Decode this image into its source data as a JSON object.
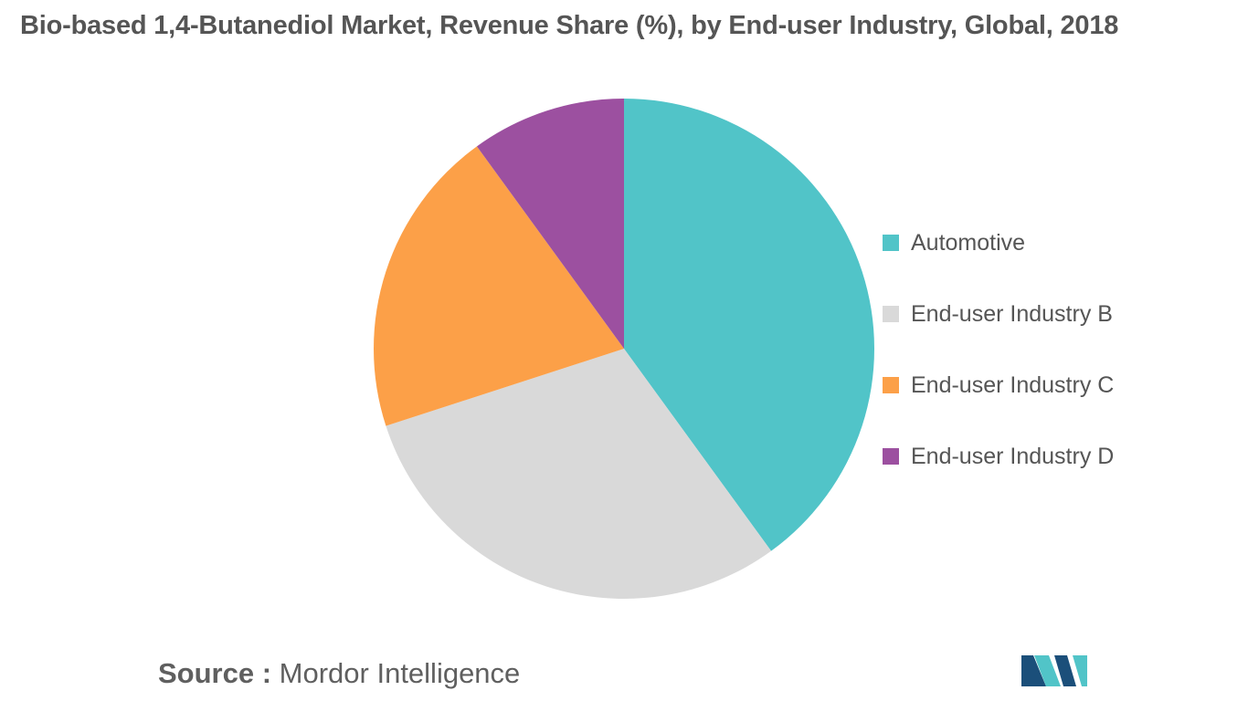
{
  "title": "Bio-based 1,4-Butanediol Market, Revenue Share (%), by End-user Industry, Global, 2018",
  "chart_data": {
    "type": "pie",
    "title": "Bio-based 1,4-Butanediol Market, Revenue Share (%), by End-user Industry, Global, 2018",
    "start_angle": "12 o'clock",
    "direction": "clockwise",
    "slices": [
      {
        "label": "Automotive",
        "value": 40,
        "color": "#51c4c8"
      },
      {
        "label": "End-user Industry B",
        "value": 30,
        "color": "#d9d9d9"
      },
      {
        "label": "End-user Industry C",
        "value": 20,
        "color": "#fca048"
      },
      {
        "label": "End-user Industry D",
        "value": 10,
        "color": "#9c50a0"
      }
    ],
    "legend": "right"
  },
  "source": {
    "label": "Source :",
    "text": "Mordor Intelligence"
  },
  "logo": {
    "icon": "mordor-intelligence-logo-icon",
    "colors": [
      "#1b4f7a",
      "#51c4c8"
    ]
  }
}
